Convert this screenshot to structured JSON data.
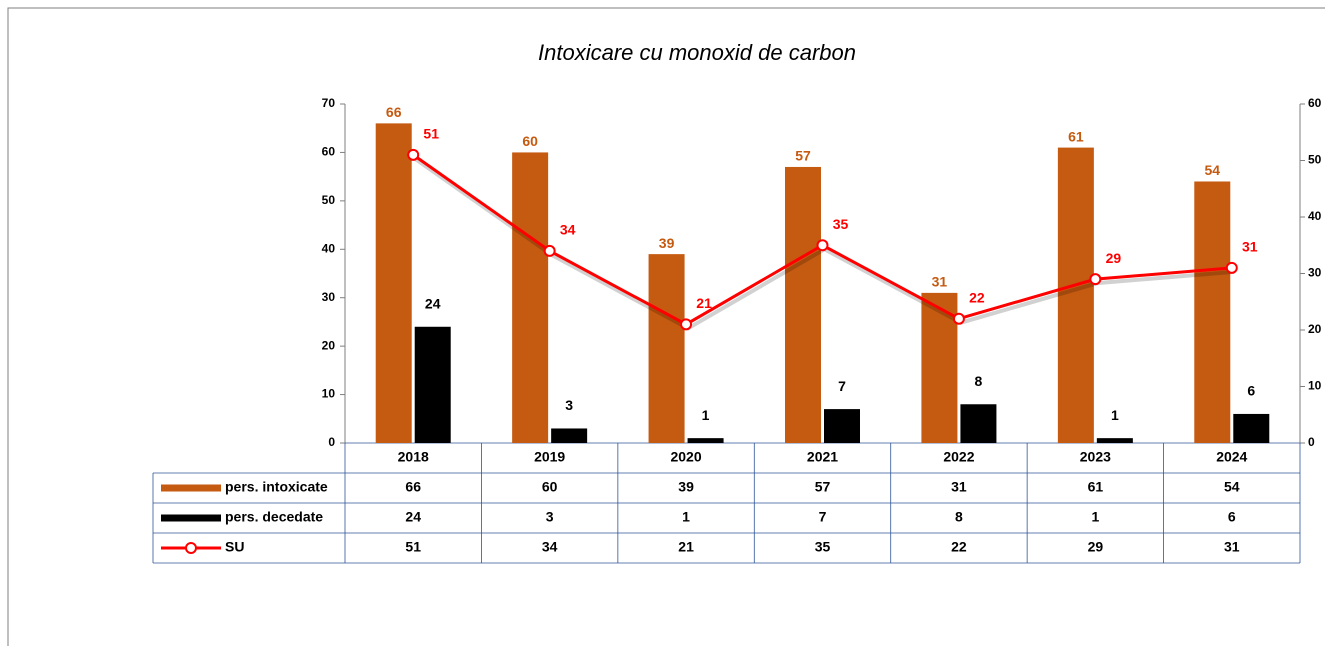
{
  "chart_data": {
    "type": "bar",
    "title": "Intoxicare cu monoxid de carbon",
    "categories": [
      "2018",
      "2019",
      "2020",
      "2021",
      "2022",
      "2023",
      "2024"
    ],
    "series": [
      {
        "name": "pers. intoxicate",
        "color": "#C55A11",
        "values": [
          66,
          60,
          39,
          57,
          31,
          61,
          54
        ]
      },
      {
        "name": "pers. decedate",
        "color": "#000000",
        "values": [
          24,
          3,
          1,
          7,
          8,
          1,
          6
        ]
      },
      {
        "name": "SU",
        "color": "#FF0000",
        "type": "line",
        "axis": "y2",
        "values": [
          51,
          34,
          21,
          35,
          22,
          29,
          31
        ]
      }
    ],
    "ylim": [
      0,
      70
    ],
    "yticks": [
      0,
      10,
      20,
      30,
      40,
      50,
      60,
      70
    ],
    "y2lim": [
      0,
      60
    ],
    "y2ticks": [
      0,
      10,
      20,
      30,
      40,
      50,
      60
    ],
    "grid": false,
    "data_table": true
  }
}
